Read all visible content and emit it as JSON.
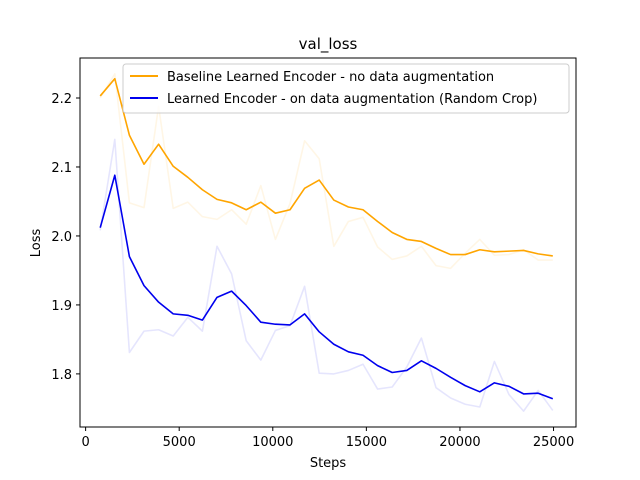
{
  "chart_data": {
    "type": "line",
    "title": "val_loss",
    "xlabel": "Steps",
    "ylabel": "Loss",
    "xlim": [
      -300,
      26200
    ],
    "ylim": [
      1.723,
      2.258
    ],
    "xticks": [
      0,
      5000,
      10000,
      15000,
      20000,
      25000
    ],
    "xtick_labels": [
      "0",
      "5000",
      "10000",
      "15000",
      "20000",
      "25000"
    ],
    "yticks": [
      1.8,
      1.9,
      2.0,
      2.1,
      2.2
    ],
    "ytick_labels": [
      "1.8",
      "1.9",
      "2.0",
      "2.1",
      "2.2"
    ],
    "legend_position": "upper-right",
    "grid": false,
    "series": [
      {
        "name": "Baseline Learned Encoder - no data augmentation",
        "color": "#ffa500",
        "raw": [
          [
            780,
            2.2
          ],
          [
            1560,
            2.235
          ],
          [
            2340,
            2.048
          ],
          [
            3120,
            2.041
          ],
          [
            3900,
            2.188
          ],
          [
            4680,
            2.04
          ],
          [
            5460,
            2.049
          ],
          [
            6240,
            2.028
          ],
          [
            7020,
            2.024
          ],
          [
            7800,
            2.038
          ],
          [
            8580,
            2.017
          ],
          [
            9360,
            2.073
          ],
          [
            10140,
            1.995
          ],
          [
            10920,
            2.047
          ],
          [
            11700,
            2.138
          ],
          [
            12480,
            2.112
          ],
          [
            13260,
            1.985
          ],
          [
            14040,
            2.021
          ],
          [
            14820,
            2.027
          ],
          [
            15600,
            1.984
          ],
          [
            16380,
            1.966
          ],
          [
            17160,
            1.971
          ],
          [
            17940,
            1.985
          ],
          [
            18720,
            1.957
          ],
          [
            19500,
            1.953
          ],
          [
            20280,
            1.975
          ],
          [
            21060,
            1.995
          ],
          [
            21840,
            1.972
          ],
          [
            22620,
            1.973
          ],
          [
            23400,
            1.98
          ],
          [
            24180,
            1.965
          ],
          [
            24960,
            1.965
          ]
        ],
        "smoothed": [
          [
            780,
            2.203
          ],
          [
            1560,
            2.228
          ],
          [
            2340,
            2.146
          ],
          [
            3120,
            2.104
          ],
          [
            3900,
            2.133
          ],
          [
            4680,
            2.101
          ],
          [
            5460,
            2.085
          ],
          [
            6240,
            2.067
          ],
          [
            7020,
            2.053
          ],
          [
            7800,
            2.048
          ],
          [
            8580,
            2.038
          ],
          [
            9360,
            2.049
          ],
          [
            10140,
            2.033
          ],
          [
            10920,
            2.038
          ],
          [
            11700,
            2.069
          ],
          [
            12480,
            2.081
          ],
          [
            13260,
            2.052
          ],
          [
            14040,
            2.042
          ],
          [
            14820,
            2.038
          ],
          [
            15600,
            2.021
          ],
          [
            16380,
            2.005
          ],
          [
            17160,
            1.995
          ],
          [
            17940,
            1.992
          ],
          [
            18720,
            1.982
          ],
          [
            19500,
            1.973
          ],
          [
            20280,
            1.973
          ],
          [
            21060,
            1.98
          ],
          [
            21840,
            1.977
          ],
          [
            22620,
            1.978
          ],
          [
            23400,
            1.979
          ],
          [
            24180,
            1.974
          ],
          [
            24960,
            1.971
          ]
        ]
      },
      {
        "name": "Learned Encoder - on data augmentation (Random Crop)",
        "color": "#0000ee",
        "raw": [
          [
            780,
            2.008
          ],
          [
            1560,
            2.14
          ],
          [
            2340,
            1.831
          ],
          [
            3120,
            1.862
          ],
          [
            3900,
            1.864
          ],
          [
            4680,
            1.855
          ],
          [
            5460,
            1.882
          ],
          [
            6240,
            1.862
          ],
          [
            7020,
            1.985
          ],
          [
            7800,
            1.945
          ],
          [
            8580,
            1.848
          ],
          [
            9360,
            1.82
          ],
          [
            10140,
            1.863
          ],
          [
            10920,
            1.87
          ],
          [
            11700,
            1.927
          ],
          [
            12480,
            1.801
          ],
          [
            13260,
            1.8
          ],
          [
            14040,
            1.805
          ],
          [
            14820,
            1.814
          ],
          [
            15600,
            1.778
          ],
          [
            16380,
            1.781
          ],
          [
            17160,
            1.81
          ],
          [
            17940,
            1.852
          ],
          [
            18720,
            1.78
          ],
          [
            19500,
            1.765
          ],
          [
            20280,
            1.756
          ],
          [
            21060,
            1.752
          ],
          [
            21840,
            1.818
          ],
          [
            22620,
            1.77
          ],
          [
            23400,
            1.746
          ],
          [
            24180,
            1.776
          ],
          [
            24960,
            1.747
          ]
        ],
        "smoothed": [
          [
            780,
            2.012
          ],
          [
            1560,
            2.088
          ],
          [
            2340,
            1.97
          ],
          [
            3120,
            1.928
          ],
          [
            3900,
            1.904
          ],
          [
            4680,
            1.887
          ],
          [
            5460,
            1.885
          ],
          [
            6240,
            1.878
          ],
          [
            7020,
            1.911
          ],
          [
            7800,
            1.92
          ],
          [
            8580,
            1.899
          ],
          [
            9360,
            1.875
          ],
          [
            10140,
            1.872
          ],
          [
            10920,
            1.871
          ],
          [
            11700,
            1.887
          ],
          [
            12480,
            1.861
          ],
          [
            13260,
            1.843
          ],
          [
            14040,
            1.832
          ],
          [
            14820,
            1.827
          ],
          [
            15600,
            1.812
          ],
          [
            16380,
            1.802
          ],
          [
            17160,
            1.805
          ],
          [
            17940,
            1.819
          ],
          [
            18720,
            1.808
          ],
          [
            19500,
            1.795
          ],
          [
            20280,
            1.783
          ],
          [
            21060,
            1.774
          ],
          [
            21840,
            1.787
          ],
          [
            22620,
            1.782
          ],
          [
            23400,
            1.771
          ],
          [
            24180,
            1.772
          ],
          [
            24960,
            1.764
          ]
        ]
      }
    ]
  }
}
